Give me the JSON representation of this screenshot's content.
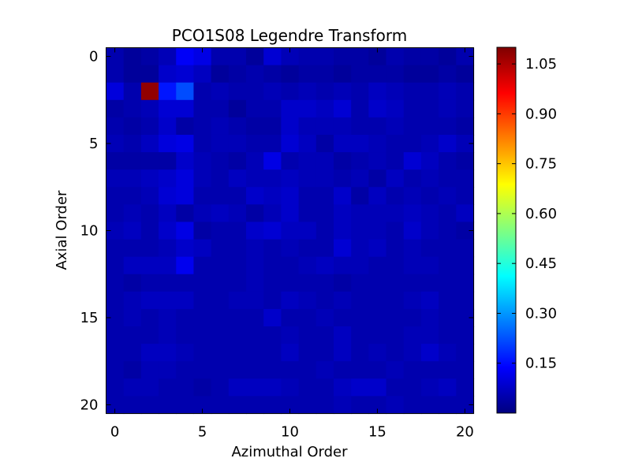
{
  "chart_data": {
    "type": "heatmap",
    "title": "PCO1S08 Legendre Transform",
    "xlabel": "Azimuthal Order",
    "ylabel": "Axial Order",
    "x_ticks": [
      "0",
      "5",
      "10",
      "15",
      "20"
    ],
    "y_ticks": [
      "0",
      "5",
      "10",
      "15",
      "20"
    ],
    "x_range": [
      0,
      20
    ],
    "y_range": [
      0,
      20
    ],
    "colormap": "jet",
    "color_range": [
      0.0,
      1.1
    ],
    "colorbar_ticks": [
      "1.05",
      "0.90",
      "0.75",
      "0.60",
      "0.45",
      "0.30",
      "0.15"
    ],
    "colorbar_tick_values": [
      1.05,
      0.9,
      0.75,
      0.6,
      0.45,
      0.3,
      0.15
    ],
    "grid": false,
    "values": [
      [
        0.05,
        0.03,
        0.04,
        0.06,
        0.13,
        0.11,
        0.05,
        0.05,
        0.03,
        0.09,
        0.06,
        0.05,
        0.05,
        0.04,
        0.04,
        0.03,
        0.05,
        0.04,
        0.04,
        0.03,
        0.05
      ],
      [
        0.05,
        0.03,
        0.03,
        0.08,
        0.09,
        0.07,
        0.03,
        0.04,
        0.05,
        0.04,
        0.03,
        0.04,
        0.04,
        0.03,
        0.04,
        0.04,
        0.04,
        0.03,
        0.03,
        0.04,
        0.03
      ],
      [
        0.1,
        0.05,
        1.08,
        0.16,
        0.22,
        0.05,
        0.06,
        0.05,
        0.05,
        0.06,
        0.05,
        0.06,
        0.05,
        0.06,
        0.05,
        0.07,
        0.06,
        0.05,
        0.05,
        0.06,
        0.05
      ],
      [
        0.04,
        0.05,
        0.06,
        0.09,
        0.09,
        0.05,
        0.05,
        0.03,
        0.05,
        0.05,
        0.08,
        0.08,
        0.07,
        0.09,
        0.05,
        0.08,
        0.07,
        0.05,
        0.05,
        0.06,
        0.05
      ],
      [
        0.05,
        0.04,
        0.05,
        0.08,
        0.04,
        0.05,
        0.06,
        0.05,
        0.04,
        0.04,
        0.08,
        0.06,
        0.06,
        0.06,
        0.05,
        0.05,
        0.06,
        0.05,
        0.05,
        0.05,
        0.04
      ],
      [
        0.06,
        0.05,
        0.07,
        0.1,
        0.11,
        0.05,
        0.06,
        0.06,
        0.05,
        0.05,
        0.09,
        0.07,
        0.04,
        0.07,
        0.07,
        0.06,
        0.05,
        0.05,
        0.06,
        0.08,
        0.06
      ],
      [
        0.04,
        0.04,
        0.04,
        0.04,
        0.08,
        0.06,
        0.05,
        0.04,
        0.06,
        0.11,
        0.05,
        0.06,
        0.06,
        0.04,
        0.05,
        0.06,
        0.05,
        0.09,
        0.07,
        0.05,
        0.04
      ],
      [
        0.06,
        0.06,
        0.07,
        0.08,
        0.1,
        0.06,
        0.05,
        0.07,
        0.06,
        0.06,
        0.07,
        0.06,
        0.06,
        0.05,
        0.06,
        0.04,
        0.07,
        0.05,
        0.06,
        0.05,
        0.05
      ],
      [
        0.05,
        0.05,
        0.06,
        0.09,
        0.1,
        0.05,
        0.05,
        0.05,
        0.08,
        0.07,
        0.08,
        0.05,
        0.05,
        0.08,
        0.04,
        0.07,
        0.05,
        0.06,
        0.05,
        0.06,
        0.05
      ],
      [
        0.05,
        0.06,
        0.05,
        0.07,
        0.04,
        0.06,
        0.07,
        0.06,
        0.04,
        0.06,
        0.08,
        0.05,
        0.05,
        0.07,
        0.06,
        0.06,
        0.06,
        0.07,
        0.06,
        0.05,
        0.07
      ],
      [
        0.06,
        0.07,
        0.05,
        0.08,
        0.11,
        0.04,
        0.05,
        0.05,
        0.08,
        0.09,
        0.07,
        0.07,
        0.05,
        0.07,
        0.06,
        0.06,
        0.05,
        0.08,
        0.06,
        0.05,
        0.04
      ],
      [
        0.05,
        0.05,
        0.05,
        0.06,
        0.08,
        0.07,
        0.05,
        0.05,
        0.06,
        0.05,
        0.06,
        0.05,
        0.05,
        0.09,
        0.06,
        0.07,
        0.05,
        0.06,
        0.05,
        0.05,
        0.05
      ],
      [
        0.05,
        0.07,
        0.07,
        0.07,
        0.12,
        0.05,
        0.05,
        0.05,
        0.06,
        0.05,
        0.05,
        0.06,
        0.07,
        0.06,
        0.06,
        0.05,
        0.05,
        0.06,
        0.06,
        0.05,
        0.05
      ],
      [
        0.05,
        0.04,
        0.05,
        0.05,
        0.05,
        0.05,
        0.05,
        0.05,
        0.06,
        0.05,
        0.05,
        0.05,
        0.05,
        0.04,
        0.05,
        0.05,
        0.05,
        0.05,
        0.05,
        0.05,
        0.05
      ],
      [
        0.05,
        0.06,
        0.07,
        0.07,
        0.07,
        0.05,
        0.05,
        0.06,
        0.06,
        0.05,
        0.07,
        0.06,
        0.05,
        0.06,
        0.05,
        0.05,
        0.05,
        0.06,
        0.07,
        0.05,
        0.05
      ],
      [
        0.05,
        0.06,
        0.05,
        0.06,
        0.05,
        0.05,
        0.05,
        0.05,
        0.05,
        0.08,
        0.05,
        0.05,
        0.06,
        0.05,
        0.05,
        0.05,
        0.05,
        0.05,
        0.06,
        0.05,
        0.05
      ],
      [
        0.05,
        0.05,
        0.05,
        0.06,
        0.05,
        0.05,
        0.05,
        0.05,
        0.05,
        0.05,
        0.06,
        0.05,
        0.05,
        0.07,
        0.05,
        0.05,
        0.05,
        0.06,
        0.06,
        0.05,
        0.05
      ],
      [
        0.05,
        0.05,
        0.07,
        0.07,
        0.06,
        0.05,
        0.05,
        0.05,
        0.05,
        0.05,
        0.07,
        0.05,
        0.05,
        0.07,
        0.05,
        0.06,
        0.05,
        0.06,
        0.08,
        0.06,
        0.05
      ],
      [
        0.05,
        0.04,
        0.06,
        0.06,
        0.05,
        0.05,
        0.05,
        0.05,
        0.05,
        0.05,
        0.05,
        0.05,
        0.06,
        0.05,
        0.05,
        0.05,
        0.06,
        0.05,
        0.05,
        0.05,
        0.05
      ],
      [
        0.05,
        0.06,
        0.06,
        0.05,
        0.05,
        0.04,
        0.05,
        0.07,
        0.07,
        0.07,
        0.06,
        0.05,
        0.05,
        0.07,
        0.08,
        0.08,
        0.05,
        0.05,
        0.06,
        0.07,
        0.05
      ],
      [
        0.05,
        0.05,
        0.05,
        0.05,
        0.05,
        0.05,
        0.05,
        0.05,
        0.05,
        0.05,
        0.05,
        0.05,
        0.05,
        0.06,
        0.05,
        0.05,
        0.06,
        0.05,
        0.05,
        0.05,
        0.05
      ]
    ]
  }
}
